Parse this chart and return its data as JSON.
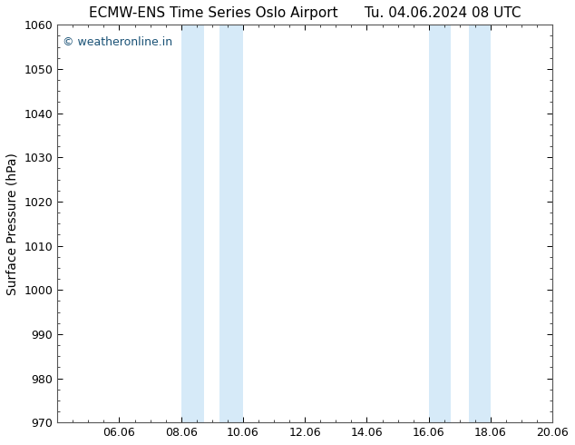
{
  "title_left": "ECMW-ENS Time Series Oslo Airport",
  "title_right": "Tu. 04.06.2024 08 UTC",
  "ylabel": "Surface Pressure (hPa)",
  "ylim": [
    970,
    1060
  ],
  "yticks": [
    970,
    980,
    990,
    1000,
    1010,
    1020,
    1030,
    1040,
    1050,
    1060
  ],
  "xtick_labels": [
    "06.06",
    "08.06",
    "10.06",
    "12.06",
    "14.06",
    "16.06",
    "18.06",
    "20.06"
  ],
  "xtick_positions": [
    2,
    4,
    6,
    8,
    10,
    12,
    14,
    16
  ],
  "shading_bands": [
    {
      "x_start": 4.0,
      "x_end": 4.9
    },
    {
      "x_start": 5.5,
      "x_end": 6.0
    },
    {
      "x_start": 12.0,
      "x_end": 12.5
    },
    {
      "x_start": 13.1,
      "x_end": 14.0
    }
  ],
  "shading_color": "#d6eaf8",
  "background_color": "#ffffff",
  "watermark_text": "© weatheronline.in",
  "watermark_color": "#1a5276",
  "title_fontsize": 11,
  "axis_label_fontsize": 10,
  "tick_fontsize": 9,
  "watermark_fontsize": 9
}
